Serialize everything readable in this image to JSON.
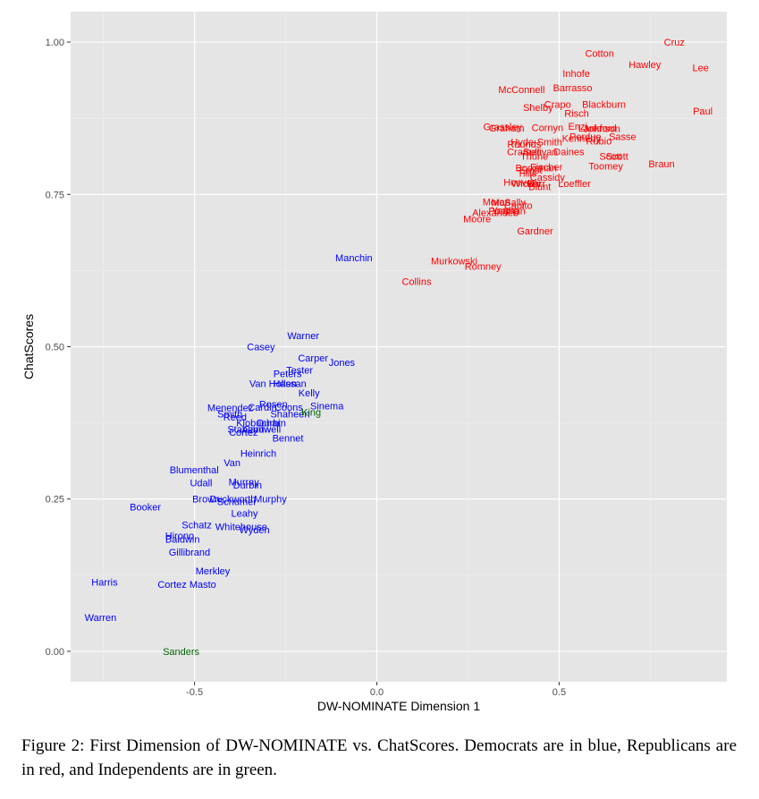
{
  "caption": "Figure 2: First Dimension of DW-NOMINATE vs. ChatScores. Democrats are in blue, Republicans are in red, and Independents are in green.",
  "chart_data": {
    "type": "scatter",
    "xlabel": "DW-NOMINATE Dimension 1",
    "ylabel": "ChatScores",
    "xlim": [
      -0.84,
      0.96
    ],
    "ylim": [
      -0.05,
      1.05
    ],
    "x_ticks": [
      -0.5,
      0.0,
      0.5
    ],
    "x_tick_labels": [
      "-0.5",
      "0.0",
      "0.5"
    ],
    "y_ticks": [
      0.0,
      0.25,
      0.5,
      0.75,
      1.0
    ],
    "y_tick_labels": [
      "0.00",
      "0.25",
      "0.50",
      "0.75",
      "1.00"
    ],
    "grid": true,
    "background": "#e5e5e5",
    "party_colors": {
      "D": "#0000ff",
      "R": "#ff0000",
      "I": "#006400"
    },
    "points": [
      {
        "name": "Cruz",
        "party": "R",
        "x": 0.816,
        "y": 1.0
      },
      {
        "name": "Cotton",
        "party": "R",
        "x": 0.611,
        "y": 0.982
      },
      {
        "name": "Hawley",
        "party": "R",
        "x": 0.735,
        "y": 0.963
      },
      {
        "name": "Lee",
        "party": "R",
        "x": 0.888,
        "y": 0.958
      },
      {
        "name": "Inhofe",
        "party": "R",
        "x": 0.547,
        "y": 0.949
      },
      {
        "name": "Barrasso",
        "party": "R",
        "x": 0.537,
        "y": 0.925
      },
      {
        "name": "McConnell",
        "party": "R",
        "x": 0.397,
        "y": 0.922
      },
      {
        "name": "Crapo",
        "party": "R",
        "x": 0.496,
        "y": 0.898
      },
      {
        "name": "Blackburn",
        "party": "R",
        "x": 0.623,
        "y": 0.898
      },
      {
        "name": "Shelby",
        "party": "R",
        "x": 0.442,
        "y": 0.893
      },
      {
        "name": "Risch",
        "party": "R",
        "x": 0.548,
        "y": 0.883
      },
      {
        "name": "Paul",
        "party": "R",
        "x": 0.894,
        "y": 0.887
      },
      {
        "name": "Grassley",
        "party": "R",
        "x": 0.345,
        "y": 0.861
      },
      {
        "name": "Graham",
        "party": "R",
        "x": 0.356,
        "y": 0.859
      },
      {
        "name": "Cornyn",
        "party": "R",
        "x": 0.468,
        "y": 0.86
      },
      {
        "name": "Enzi",
        "party": "R",
        "x": 0.551,
        "y": 0.862
      },
      {
        "name": "Lankford",
        "party": "R",
        "x": 0.605,
        "y": 0.859
      },
      {
        "name": "Johnson",
        "party": "R",
        "x": 0.617,
        "y": 0.858
      },
      {
        "name": "Perdue",
        "party": "R",
        "x": 0.572,
        "y": 0.845
      },
      {
        "name": "Kennedy",
        "party": "R",
        "x": 0.561,
        "y": 0.842
      },
      {
        "name": "Rubio",
        "party": "R",
        "x": 0.609,
        "y": 0.838
      },
      {
        "name": "Sasse",
        "party": "R",
        "x": 0.674,
        "y": 0.845
      },
      {
        "name": "Hyde-Smith",
        "party": "R",
        "x": 0.438,
        "y": 0.836
      },
      {
        "name": "Rounds",
        "party": "R",
        "x": 0.404,
        "y": 0.833
      },
      {
        "name": "Cramer",
        "party": "R",
        "x": 0.402,
        "y": 0.82
      },
      {
        "name": "Sullivan",
        "party": "R",
        "x": 0.448,
        "y": 0.82
      },
      {
        "name": "Daines",
        "party": "R",
        "x": 0.527,
        "y": 0.82
      },
      {
        "name": "Thune",
        "party": "R",
        "x": 0.432,
        "y": 0.813
      },
      {
        "name": "Scott",
        "party": "R",
        "x": 0.641,
        "y": 0.813
      },
      {
        "name": "Scott",
        "party": "R",
        "x": 0.659,
        "y": 0.813
      },
      {
        "name": "Toomey",
        "party": "R",
        "x": 0.628,
        "y": 0.797
      },
      {
        "name": "Braun",
        "party": "R",
        "x": 0.781,
        "y": 0.8
      },
      {
        "name": "Boozman",
        "party": "R",
        "x": 0.437,
        "y": 0.794
      },
      {
        "name": "Fischer",
        "party": "R",
        "x": 0.465,
        "y": 0.795
      },
      {
        "name": "Tillis",
        "party": "R",
        "x": 0.412,
        "y": 0.785
      },
      {
        "name": "Ernst",
        "party": "R",
        "x": 0.422,
        "y": 0.79
      },
      {
        "name": "Cassidy",
        "party": "R",
        "x": 0.468,
        "y": 0.778
      },
      {
        "name": "Hoeven",
        "party": "R",
        "x": 0.394,
        "y": 0.77
      },
      {
        "name": "Wicker",
        "party": "R",
        "x": 0.41,
        "y": 0.768
      },
      {
        "name": "Loeffler",
        "party": "R",
        "x": 0.542,
        "y": 0.768
      },
      {
        "name": "Burr",
        "party": "R",
        "x": 0.437,
        "y": 0.768
      },
      {
        "name": "Blunt",
        "party": "R",
        "x": 0.447,
        "y": 0.763
      },
      {
        "name": "Moran",
        "party": "R",
        "x": 0.328,
        "y": 0.738
      },
      {
        "name": "McSally",
        "party": "R",
        "x": 0.361,
        "y": 0.737
      },
      {
        "name": "Capito",
        "party": "R",
        "x": 0.388,
        "y": 0.732
      },
      {
        "name": "Portman",
        "party": "R",
        "x": 0.357,
        "y": 0.723
      },
      {
        "name": "Young",
        "party": "R",
        "x": 0.352,
        "y": 0.724
      },
      {
        "name": "Alexander",
        "party": "R",
        "x": 0.322,
        "y": 0.72
      },
      {
        "name": "Moore",
        "party": "R",
        "x": 0.275,
        "y": 0.71
      },
      {
        "name": "Gardner",
        "party": "R",
        "x": 0.434,
        "y": 0.69
      },
      {
        "name": "Murkowski",
        "party": "R",
        "x": 0.212,
        "y": 0.641
      },
      {
        "name": "Romney",
        "party": "R",
        "x": 0.291,
        "y": 0.632
      },
      {
        "name": "Collins",
        "party": "R",
        "x": 0.109,
        "y": 0.607
      },
      {
        "name": "Manchin",
        "party": "D",
        "x": -0.063,
        "y": 0.646
      },
      {
        "name": "Warner",
        "party": "D",
        "x": -0.202,
        "y": 0.518
      },
      {
        "name": "Casey",
        "party": "D",
        "x": -0.318,
        "y": 0.5
      },
      {
        "name": "Carper",
        "party": "D",
        "x": -0.175,
        "y": 0.482
      },
      {
        "name": "Jones",
        "party": "D",
        "x": -0.096,
        "y": 0.474
      },
      {
        "name": "Tester",
        "party": "D",
        "x": -0.212,
        "y": 0.462
      },
      {
        "name": "Peters",
        "party": "D",
        "x": -0.245,
        "y": 0.456
      },
      {
        "name": "Van Hollen",
        "party": "D",
        "x": -0.285,
        "y": 0.44
      },
      {
        "name": "Hassan",
        "party": "D",
        "x": -0.239,
        "y": 0.44
      },
      {
        "name": "Kelly",
        "party": "D",
        "x": -0.186,
        "y": 0.424
      },
      {
        "name": "Sinema",
        "party": "D",
        "x": -0.137,
        "y": 0.403
      },
      {
        "name": "Rosen",
        "party": "D",
        "x": -0.284,
        "y": 0.406
      },
      {
        "name": "Menendez",
        "party": "D",
        "x": -0.402,
        "y": 0.4
      },
      {
        "name": "Cardin",
        "party": "D",
        "x": -0.314,
        "y": 0.401
      },
      {
        "name": "Coons",
        "party": "D",
        "x": -0.242,
        "y": 0.401
      },
      {
        "name": "Shaheen",
        "party": "D",
        "x": -0.238,
        "y": 0.39
      },
      {
        "name": "Smith",
        "party": "D",
        "x": -0.403,
        "y": 0.39
      },
      {
        "name": "Reed",
        "party": "D",
        "x": -0.389,
        "y": 0.385
      },
      {
        "name": "King",
        "party": "I",
        "x": -0.18,
        "y": 0.393
      },
      {
        "name": "Klobuchar",
        "party": "D",
        "x": -0.325,
        "y": 0.375
      },
      {
        "name": "Durbin",
        "party": "D",
        "x": -0.289,
        "y": 0.375
      },
      {
        "name": "Stabenow",
        "party": "D",
        "x": -0.35,
        "y": 0.365
      },
      {
        "name": "Cantwell",
        "party": "D",
        "x": -0.315,
        "y": 0.365
      },
      {
        "name": "Cortez",
        "party": "D",
        "x": -0.366,
        "y": 0.36
      },
      {
        "name": "Bennet",
        "party": "D",
        "x": -0.244,
        "y": 0.35
      },
      {
        "name": "Heinrich",
        "party": "D",
        "x": -0.325,
        "y": 0.325
      },
      {
        "name": "Van",
        "party": "D",
        "x": -0.397,
        "y": 0.31
      },
      {
        "name": "Blumenthal",
        "party": "D",
        "x": -0.501,
        "y": 0.298
      },
      {
        "name": "Udall",
        "party": "D",
        "x": -0.482,
        "y": 0.277
      },
      {
        "name": "Murray",
        "party": "D",
        "x": -0.365,
        "y": 0.278
      },
      {
        "name": "Durbin",
        "party": "D",
        "x": -0.355,
        "y": 0.273
      },
      {
        "name": "Brown",
        "party": "D",
        "x": -0.468,
        "y": 0.25
      },
      {
        "name": "Duckworth",
        "party": "D",
        "x": -0.395,
        "y": 0.25
      },
      {
        "name": "Schumer",
        "party": "D",
        "x": -0.384,
        "y": 0.246
      },
      {
        "name": "Murphy",
        "party": "D",
        "x": -0.292,
        "y": 0.25
      },
      {
        "name": "Booker",
        "party": "D",
        "x": -0.635,
        "y": 0.237
      },
      {
        "name": "Leahy",
        "party": "D",
        "x": -0.363,
        "y": 0.227
      },
      {
        "name": "Schatz",
        "party": "D",
        "x": -0.494,
        "y": 0.208
      },
      {
        "name": "Whitehouse",
        "party": "D",
        "x": -0.372,
        "y": 0.205
      },
      {
        "name": "Wyden",
        "party": "D",
        "x": -0.336,
        "y": 0.2
      },
      {
        "name": "Hirono",
        "party": "D",
        "x": -0.541,
        "y": 0.19
      },
      {
        "name": "Baldwin",
        "party": "D",
        "x": -0.533,
        "y": 0.184
      },
      {
        "name": "Gillibrand",
        "party": "D",
        "x": -0.514,
        "y": 0.163
      },
      {
        "name": "Merkley",
        "party": "D",
        "x": -0.45,
        "y": 0.132
      },
      {
        "name": "Harris",
        "party": "D",
        "x": -0.747,
        "y": 0.114
      },
      {
        "name": "Cortez Masto",
        "party": "D",
        "x": -0.521,
        "y": 0.11
      },
      {
        "name": "Warren",
        "party": "D",
        "x": -0.758,
        "y": 0.056
      },
      {
        "name": "Sanders",
        "party": "I",
        "x": -0.537,
        "y": 0.0
      }
    ]
  }
}
